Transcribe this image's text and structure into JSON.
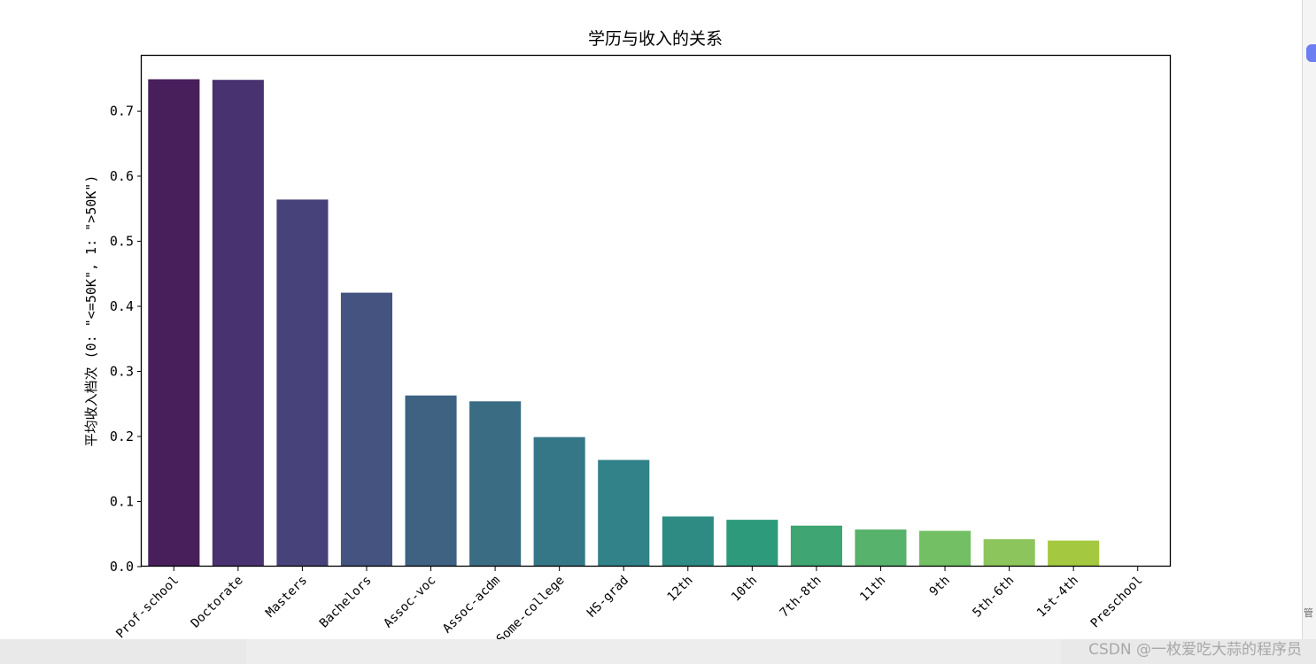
{
  "chart_data": {
    "type": "bar",
    "title": "学历与收入的关系",
    "xlabel": "",
    "ylabel": "平均收入档次 (0: \"<=50K\", 1: \">50K\")",
    "categories": [
      "Prof-school",
      "Doctorate",
      "Masters",
      "Bachelors",
      "Assoc-voc",
      "Assoc-acdm",
      "Some-college",
      "HS-grad",
      "12th",
      "10th",
      "7th-8th",
      "11th",
      "9th",
      "5th-6th",
      "1st-4th",
      "Preschool"
    ],
    "values": [
      0.749,
      0.748,
      0.564,
      0.421,
      0.263,
      0.254,
      0.199,
      0.164,
      0.077,
      0.072,
      0.063,
      0.057,
      0.055,
      0.042,
      0.04,
      0.0
    ],
    "colors": [
      "#481f5b",
      "#493270",
      "#48427a",
      "#44537f",
      "#3f6182",
      "#3a6c84",
      "#367787",
      "#318289",
      "#2d8b84",
      "#2e9a7c",
      "#3ea573",
      "#57b26c",
      "#73bf64",
      "#8cc55b",
      "#a4c83f",
      "#b7cf30"
    ],
    "ylim": [
      0,
      0.785
    ],
    "yticks": [
      "0.0",
      "0.1",
      "0.2",
      "0.3",
      "0.4",
      "0.5",
      "0.6",
      "0.7"
    ],
    "grid": false,
    "legend": "none"
  },
  "watermark": "CSDN @一枚爱吃大蒜的程序员",
  "side_char": "管"
}
